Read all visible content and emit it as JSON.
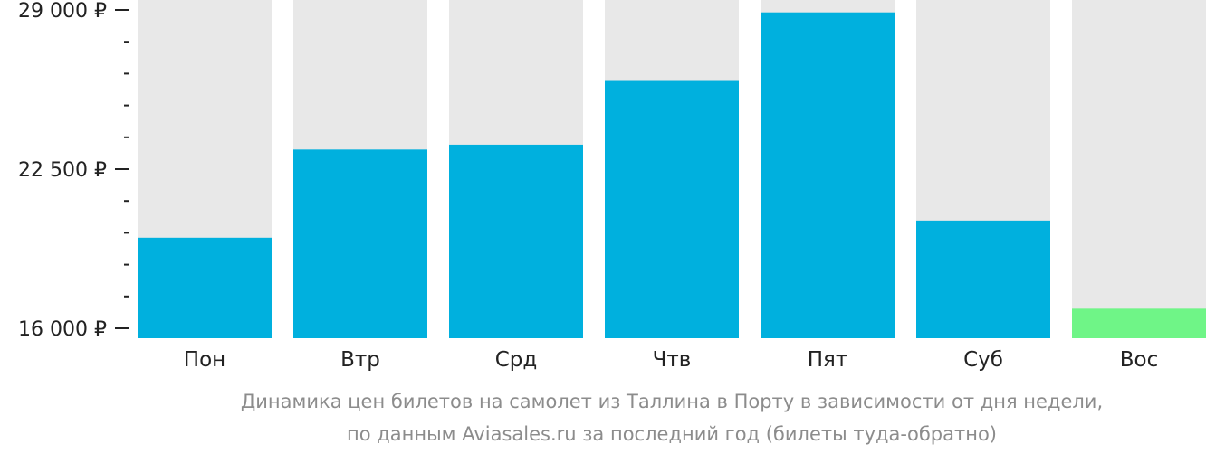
{
  "chart_data": {
    "type": "bar",
    "categories": [
      "Пон",
      "Втр",
      "Срд",
      "Чтв",
      "Пят",
      "Суб",
      "Вос"
    ],
    "values": [
      19700,
      23300,
      23500,
      26100,
      28900,
      20400,
      16800
    ],
    "highlight_index": 6,
    "ylim": [
      16000,
      29000
    ],
    "yticks": [
      16000,
      22500,
      29000
    ],
    "ytick_labels": [
      "16 000 ₽",
      "22 500 ₽",
      "29 000 ₽"
    ],
    "minor_ticks_between": 4,
    "colors": {
      "bar": "#00b0de",
      "highlight": "#6ff587",
      "background_bar": "#e8e8e8",
      "axis": "#222222"
    }
  },
  "caption": {
    "line1": "Динамика цен билетов на самолет из Таллина в Порту в зависимости от дня недели,",
    "line2": "по данным Aviasales.ru за последний год (билеты туда-обратно)"
  }
}
